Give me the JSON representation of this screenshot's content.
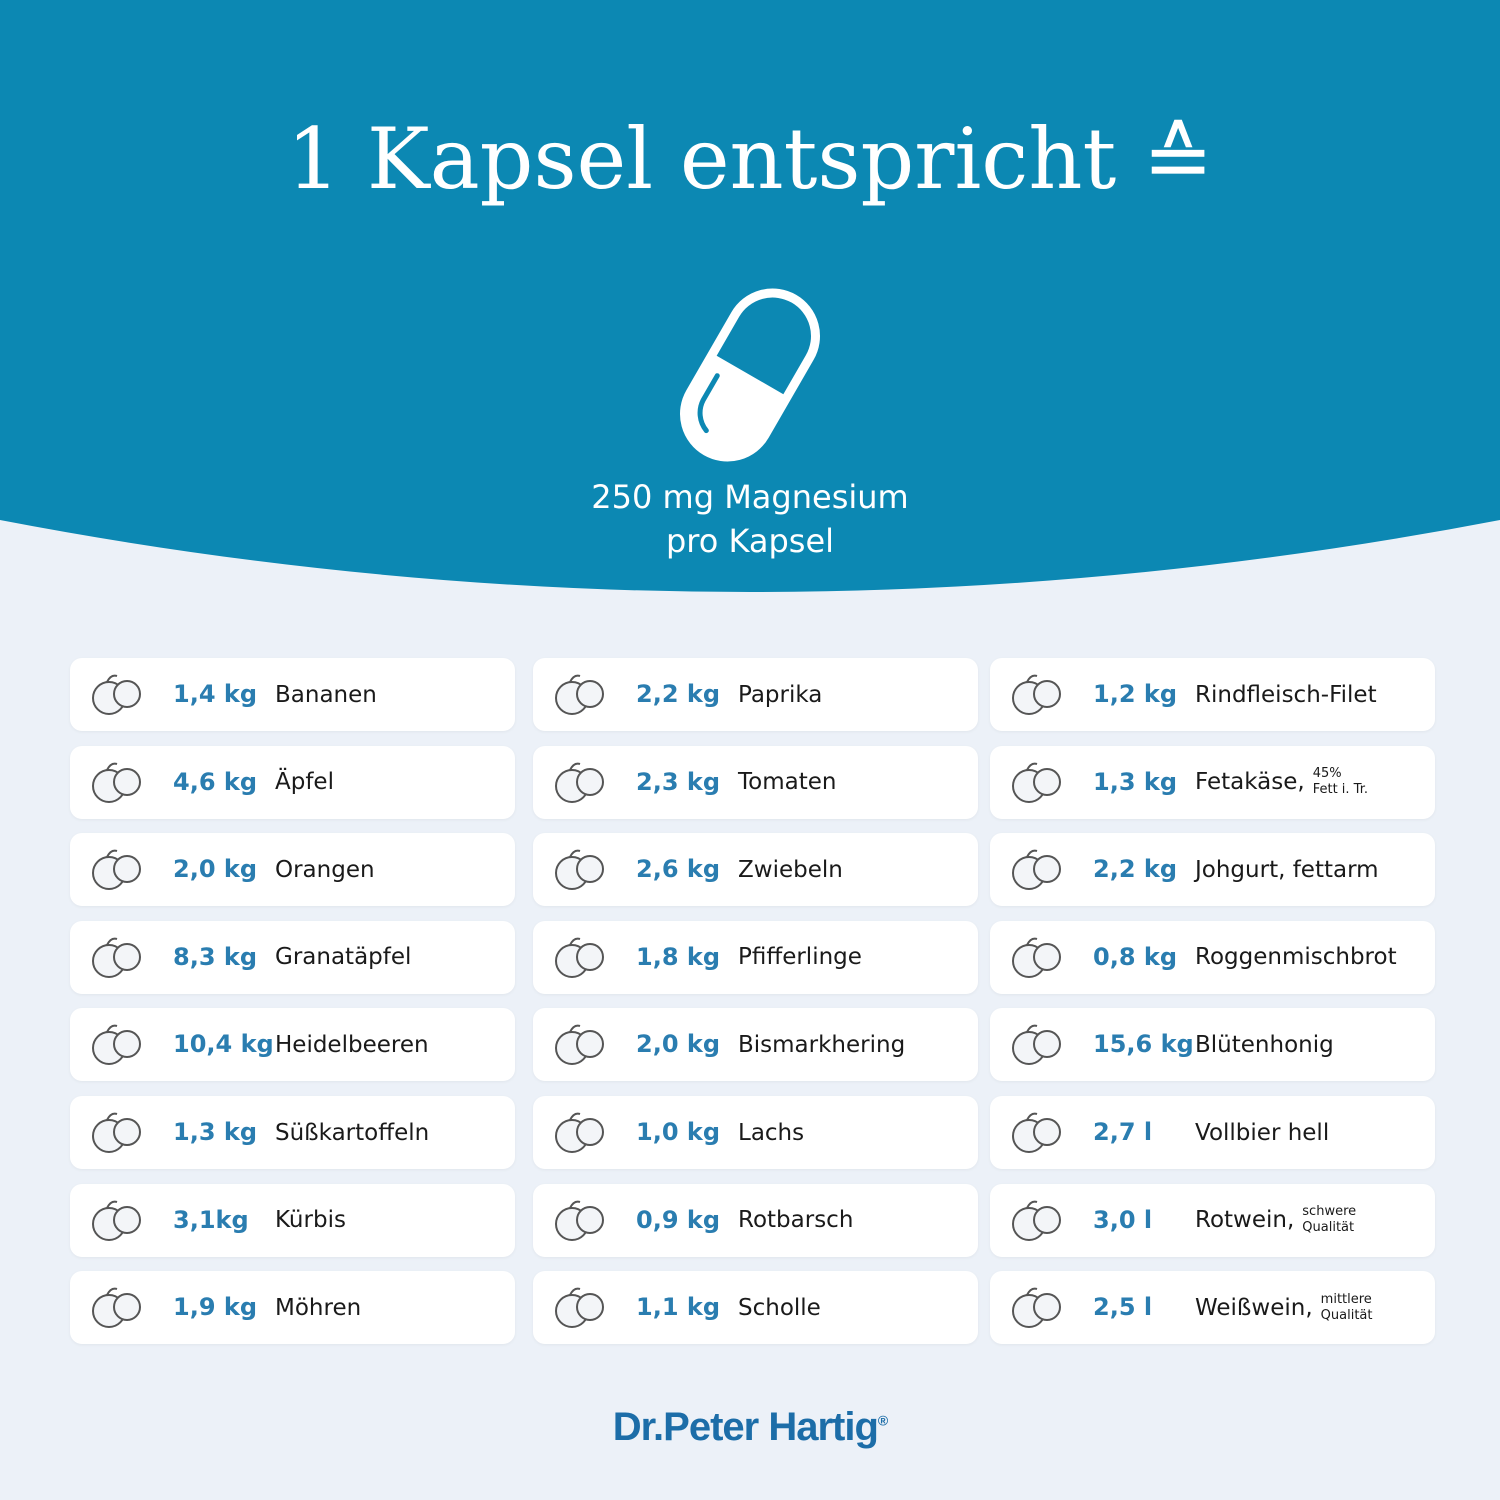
{
  "header": {
    "title": "1 Kapsel entspricht ≙",
    "capsule_text": [
      "250 mg Magnesium",
      "pro Kapsel"
    ]
  },
  "columns": [
    [
      {
        "amount": "1,4 kg",
        "name": "Bananen"
      },
      {
        "amount": "4,6 kg",
        "name": "Äpfel"
      },
      {
        "amount": "2,0 kg",
        "name": "Orangen"
      },
      {
        "amount": "8,3 kg",
        "name": "Granatäpfel"
      },
      {
        "amount": "10,4 kg",
        "name": "Heidelbeeren"
      },
      {
        "amount": "1,3 kg",
        "name": "Süßkartoffeln"
      },
      {
        "amount": "3,1kg",
        "name": "Kürbis"
      },
      {
        "amount": "1,9 kg",
        "name": "Möhren"
      }
    ],
    [
      {
        "amount": "2,2 kg",
        "name": "Paprika"
      },
      {
        "amount": "2,3 kg",
        "name": "Tomaten"
      },
      {
        "amount": "2,6 kg",
        "name": "Zwiebeln"
      },
      {
        "amount": "1,8 kg",
        "name": "Pfifferlinge"
      },
      {
        "amount": "2,0 kg",
        "name": "Bismarkhering"
      },
      {
        "amount": "1,0 kg",
        "name": "Lachs"
      },
      {
        "amount": "0,9 kg",
        "name": "Rotbarsch"
      },
      {
        "amount": "1,1 kg",
        "name": "Scholle"
      }
    ],
    [
      {
        "amount": "1,2 kg",
        "name": "Rindfleisch-Filet"
      },
      {
        "amount": "1,3 kg",
        "name": "Fetakäse,",
        "note": [
          "45%",
          "Fett i. Tr."
        ]
      },
      {
        "amount": "2,2 kg",
        "name": "Johgurt, fettarm"
      },
      {
        "amount": "0,8 kg",
        "name": "Roggenmischbrot"
      },
      {
        "amount": "15,6 kg",
        "name": "Blütenhonig"
      },
      {
        "amount": "2,7 l",
        "name": "Vollbier hell"
      },
      {
        "amount": "3,0 l",
        "name": "Rotwein,",
        "note": [
          "schwere",
          "Qualität"
        ]
      },
      {
        "amount": "2,5 l",
        "name": "Weißwein,",
        "note": [
          "mittlere",
          "Qualität"
        ]
      }
    ]
  ],
  "footer": {
    "brand": "Dr.Peter Hartig",
    "mark": "®"
  }
}
